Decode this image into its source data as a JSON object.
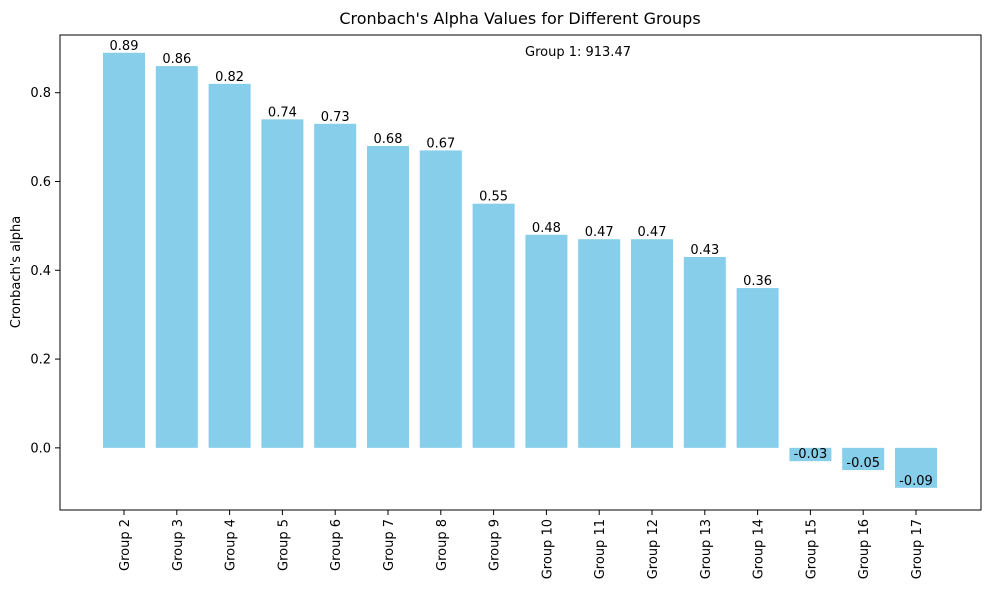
{
  "chart_data": {
    "type": "bar",
    "title": "Cronbach's Alpha Values for Different Groups",
    "xlabel": "",
    "ylabel": "Cronbach's alpha",
    "categories": [
      "Group 2",
      "Group 3",
      "Group 4",
      "Group 5",
      "Group 6",
      "Group 7",
      "Group 8",
      "Group 9",
      "Group 10",
      "Group 11",
      "Group 12",
      "Group 13",
      "Group 14",
      "Group 15",
      "Group 16",
      "Group 17"
    ],
    "values": [
      0.89,
      0.86,
      0.82,
      0.74,
      0.73,
      0.68,
      0.67,
      0.55,
      0.48,
      0.47,
      0.47,
      0.43,
      0.36,
      -0.03,
      -0.05,
      -0.09
    ],
    "ylim": [
      -0.14,
      0.93
    ],
    "yticks": [
      0.0,
      0.2,
      0.4,
      0.6,
      0.8
    ],
    "ytick_labels": [
      "0.0",
      "0.2",
      "0.4",
      "0.6",
      "0.8"
    ],
    "annotation": "Group 1: 913.47",
    "bar_color": "#87CEEB",
    "grid": false,
    "legend": "none"
  }
}
